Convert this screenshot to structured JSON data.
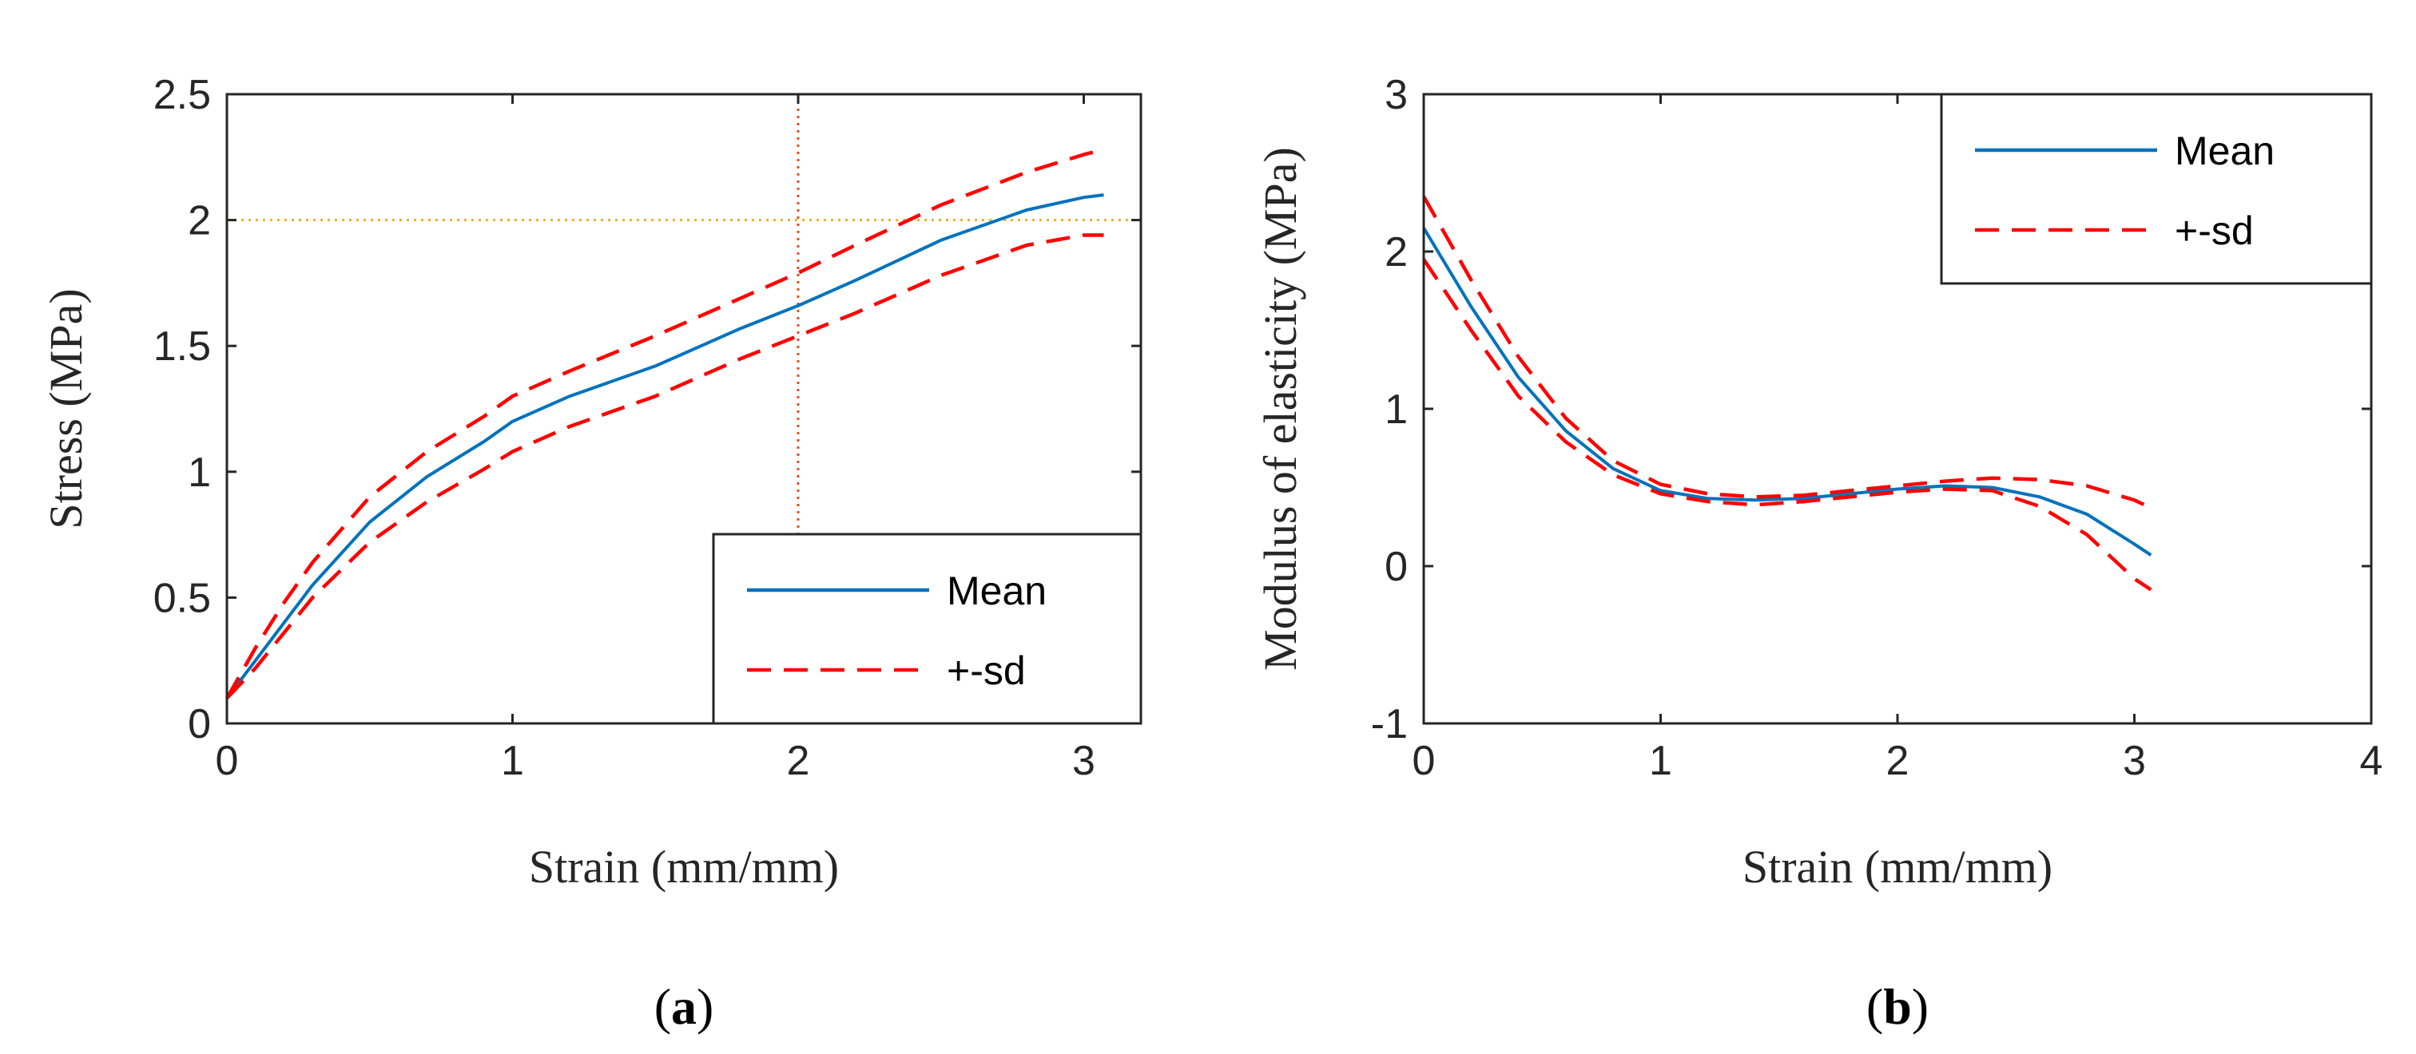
{
  "chart_data": [
    {
      "type": "line",
      "caption": "a",
      "xlabel": "Strain (mm/mm)",
      "ylabel": "Stress (MPa)",
      "xlim": [
        0,
        3.2
      ],
      "ylim": [
        0,
        2.5
      ],
      "xticks": [
        0,
        1,
        2,
        3
      ],
      "xtick_labels": [
        "0",
        "1",
        "2",
        "3"
      ],
      "yticks": [
        0,
        0.5,
        1,
        1.5,
        2,
        2.5
      ],
      "ytick_labels": [
        "0",
        "0.5",
        "1",
        "1.5",
        "2",
        "2.5"
      ],
      "legend": {
        "position": "bottom-right",
        "entries": [
          "Mean",
          "+-sd"
        ]
      },
      "reference_lines": [
        {
          "orientation": "vertical",
          "value": 2,
          "color": "#D95319"
        },
        {
          "orientation": "horizontal",
          "value": 2,
          "color": "#EDB120"
        }
      ],
      "series": [
        {
          "name": "Mean",
          "color": "#0072BD",
          "style": "solid",
          "x": [
            0,
            0.1,
            0.2,
            0.3,
            0.5,
            0.7,
            0.9,
            1.0,
            1.2,
            1.5,
            1.8,
            2.0,
            2.2,
            2.5,
            2.8,
            3.0,
            3.07
          ],
          "y": [
            0.1,
            0.25,
            0.4,
            0.55,
            0.8,
            0.98,
            1.12,
            1.2,
            1.3,
            1.42,
            1.57,
            1.66,
            1.76,
            1.92,
            2.04,
            2.09,
            2.1
          ]
        },
        {
          "name": "+-sd upper",
          "legend_name": "+-sd",
          "color": "#FF0000",
          "style": "dashed",
          "x": [
            0,
            0.1,
            0.2,
            0.3,
            0.5,
            0.7,
            0.9,
            1.0,
            1.2,
            1.5,
            1.8,
            2.0,
            2.2,
            2.5,
            2.8,
            3.0,
            3.07
          ],
          "y": [
            0.1,
            0.3,
            0.48,
            0.64,
            0.9,
            1.08,
            1.22,
            1.3,
            1.4,
            1.54,
            1.69,
            1.79,
            1.9,
            2.06,
            2.19,
            2.26,
            2.28
          ]
        },
        {
          "name": "+-sd lower",
          "legend_name": "+-sd",
          "color": "#FF0000",
          "style": "dashed",
          "x": [
            0,
            0.1,
            0.2,
            0.3,
            0.5,
            0.7,
            0.9,
            1.0,
            1.2,
            1.5,
            1.8,
            2.0,
            2.2,
            2.5,
            2.8,
            3.0,
            3.07
          ],
          "y": [
            0.1,
            0.22,
            0.36,
            0.5,
            0.72,
            0.88,
            1.01,
            1.08,
            1.18,
            1.3,
            1.45,
            1.54,
            1.63,
            1.78,
            1.9,
            1.94,
            1.94
          ]
        }
      ]
    },
    {
      "type": "line",
      "caption": "b",
      "xlabel": "Strain (mm/mm)",
      "ylabel": "Modulus of elasticity (MPa)",
      "xlim": [
        0,
        4
      ],
      "ylim": [
        -1,
        3
      ],
      "xticks": [
        0,
        1,
        2,
        3,
        4
      ],
      "xtick_labels": [
        "0",
        "1",
        "2",
        "3",
        "4"
      ],
      "yticks": [
        -1,
        0,
        1,
        2,
        3
      ],
      "ytick_labels": [
        "-1",
        "0",
        "1",
        "2",
        "3"
      ],
      "legend": {
        "position": "top-right",
        "entries": [
          "Mean",
          "+-sd"
        ]
      },
      "series": [
        {
          "name": "Mean",
          "color": "#0072BD",
          "style": "solid",
          "x": [
            0,
            0.2,
            0.4,
            0.6,
            0.8,
            1.0,
            1.2,
            1.4,
            1.6,
            1.8,
            2.0,
            2.2,
            2.4,
            2.6,
            2.8,
            3.0,
            3.07
          ],
          "y": [
            2.15,
            1.65,
            1.2,
            0.86,
            0.62,
            0.48,
            0.43,
            0.42,
            0.43,
            0.46,
            0.49,
            0.51,
            0.5,
            0.44,
            0.33,
            0.14,
            0.07
          ]
        },
        {
          "name": "+-sd upper",
          "legend_name": "+-sd",
          "color": "#FF0000",
          "style": "dashed",
          "x": [
            0,
            0.2,
            0.4,
            0.6,
            0.8,
            1.0,
            1.2,
            1.4,
            1.6,
            1.8,
            2.0,
            2.2,
            2.4,
            2.6,
            2.8,
            3.0,
            3.07
          ],
          "y": [
            2.35,
            1.82,
            1.33,
            0.94,
            0.67,
            0.52,
            0.46,
            0.44,
            0.45,
            0.48,
            0.51,
            0.54,
            0.56,
            0.55,
            0.51,
            0.42,
            0.37
          ]
        },
        {
          "name": "+-sd lower",
          "legend_name": "+-sd",
          "color": "#FF0000",
          "style": "dashed",
          "x": [
            0,
            0.2,
            0.4,
            0.6,
            0.8,
            1.0,
            1.2,
            1.4,
            1.6,
            1.8,
            2.0,
            2.2,
            2.4,
            2.6,
            2.8,
            3.0,
            3.07
          ],
          "y": [
            1.95,
            1.5,
            1.08,
            0.79,
            0.58,
            0.46,
            0.41,
            0.39,
            0.41,
            0.44,
            0.47,
            0.49,
            0.48,
            0.38,
            0.2,
            -0.08,
            -0.15
          ]
        }
      ]
    }
  ]
}
